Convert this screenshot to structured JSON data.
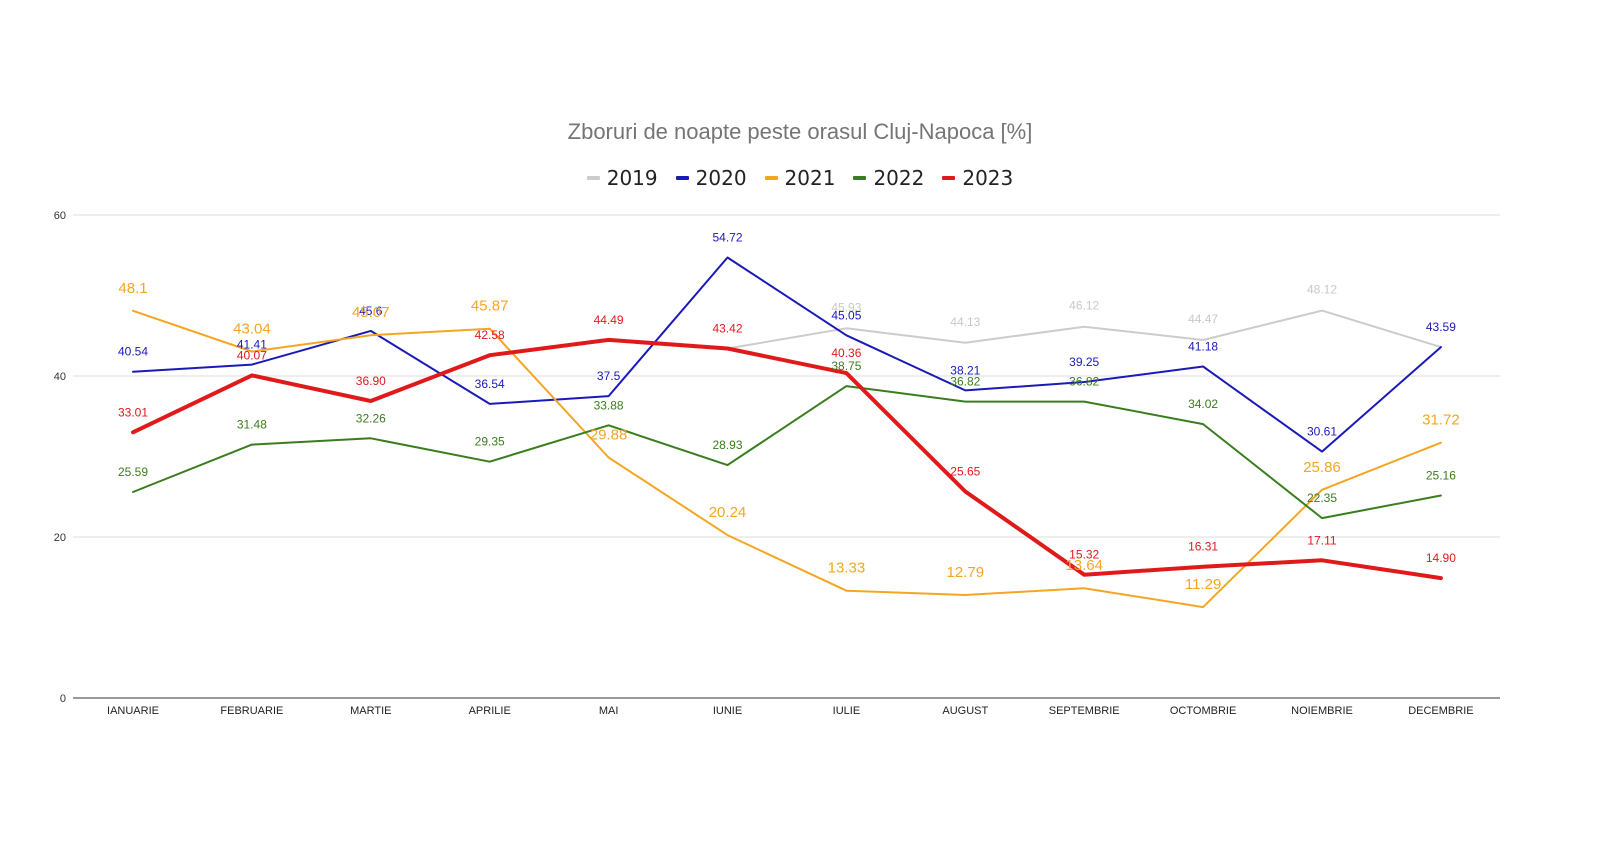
{
  "chart_data": {
    "type": "line",
    "title": "Zboruri de noapte peste orasul Cluj-Napoca [%]",
    "xlabel": "",
    "ylabel": "",
    "ylim": [
      0,
      60
    ],
    "yticks": [
      "0",
      "20",
      "40",
      "60"
    ],
    "grid": true,
    "legend_position": "top",
    "categories": [
      "IANUARIE",
      "FEBRUARIE",
      "MARTIE",
      "APRILIE",
      "MAI",
      "IUNIE",
      "IULIE",
      "AUGUST",
      "SEPTEMBRIE",
      "OCTOMBRIE",
      "NOIEMBRIE",
      "DECEMBRIE"
    ],
    "series": [
      {
        "name": "2019",
        "color": "#cccccc",
        "width": 2,
        "values": [
          null,
          null,
          null,
          null,
          null,
          43.42,
          45.93,
          44.13,
          46.12,
          44.47,
          48.12,
          43.59
        ],
        "labels": [
          null,
          null,
          null,
          null,
          null,
          null,
          "45.93",
          "44.13",
          "46.12",
          "44.47",
          "48.12",
          null
        ]
      },
      {
        "name": "2020",
        "color": "#1a1ab8",
        "width": 2,
        "values": [
          40.54,
          41.41,
          45.6,
          36.54,
          37.5,
          54.72,
          45.05,
          38.21,
          39.25,
          41.18,
          30.61,
          43.59
        ],
        "labels": [
          "40.54",
          "41.41",
          "45.6",
          "36.54",
          "37.5",
          "54.72",
          "45.05",
          "38.21",
          "39.25",
          "41.18",
          "30.61",
          "43.59"
        ]
      },
      {
        "name": "2021",
        "color": "#f4a623",
        "width": 2,
        "values": [
          48.1,
          43.04,
          45.07,
          45.87,
          29.88,
          20.24,
          13.33,
          12.79,
          13.64,
          11.29,
          25.86,
          31.72
        ],
        "labels": [
          "48.1",
          "43.04",
          "45.07",
          "45.87",
          "29.88",
          "20.24",
          "13.33",
          "12.79",
          "13.64",
          "11.29",
          "25.86",
          "31.72"
        ]
      },
      {
        "name": "2022",
        "color": "#3a7d1e",
        "width": 2,
        "values": [
          25.59,
          31.48,
          32.26,
          29.35,
          33.88,
          28.93,
          38.75,
          36.82,
          36.82,
          34.02,
          22.35,
          25.16
        ],
        "labels": [
          "25.59",
          "31.48",
          "32.26",
          "29.35",
          "33.88",
          "28.93",
          "38.75",
          "36.82",
          "36.82",
          "34.02",
          "22.35",
          "25.16"
        ]
      },
      {
        "name": "2023",
        "color": "#e01a1a",
        "width": 4,
        "values": [
          33.01,
          40.07,
          36.9,
          42.58,
          44.49,
          43.42,
          40.36,
          25.65,
          15.32,
          16.31,
          17.11,
          14.9
        ],
        "labels": [
          "33.01",
          "40.07",
          "36.90",
          "42.58",
          "44.49",
          "43.42",
          "40.36",
          "25.65",
          "15.32",
          "16.31",
          "17.11",
          "14.90"
        ]
      }
    ]
  }
}
